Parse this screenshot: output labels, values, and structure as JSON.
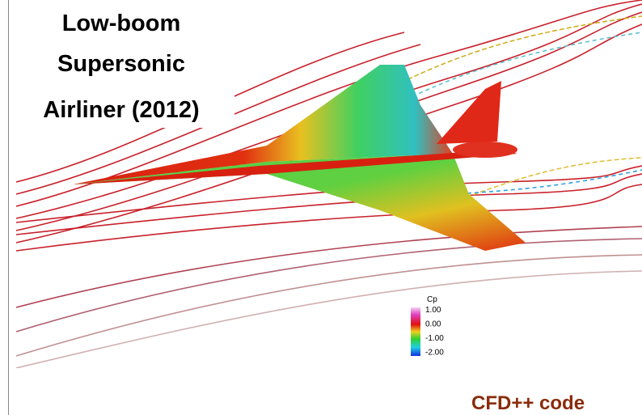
{
  "title": {
    "lines": [
      "Low-boom",
      "Supersonic",
      "Airliner (2012)"
    ]
  },
  "colorbar": {
    "label": "Cp",
    "ticks": [
      "1.00",
      "0.00",
      "-1.00",
      "-2.00"
    ]
  },
  "caption": "CFD++ code"
}
